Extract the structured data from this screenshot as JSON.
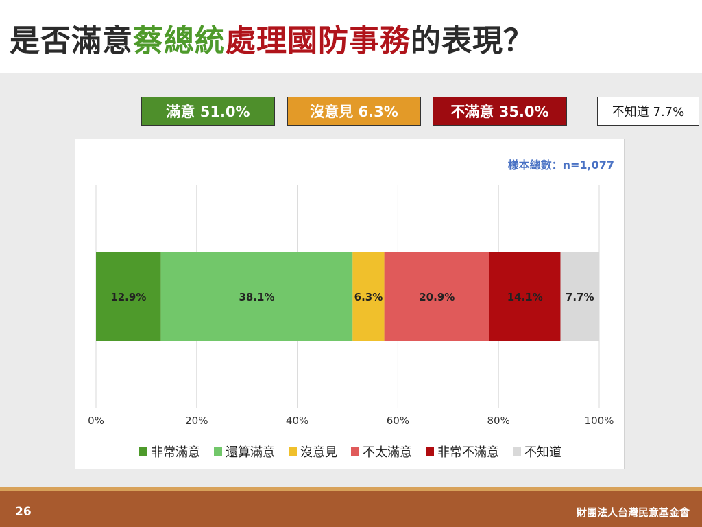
{
  "title": {
    "part1": "是否滿意",
    "part2": "蔡總統",
    "part3": "處理國防事務",
    "part4": "的表現？"
  },
  "summary": {
    "satisfied": "滿意 51.0%",
    "neutral": "沒意見 6.3%",
    "dissatisfied": "不滿意 35.0%",
    "dontknow": "不知道 7.7%"
  },
  "sample_label": "樣本總數：n=1,077",
  "footer": {
    "page": "26",
    "org": "財團法人台灣民意基金會"
  },
  "chart_data": {
    "type": "bar",
    "orientation": "horizontal-stacked",
    "categories": [
      ""
    ],
    "series": [
      {
        "name": "非常滿意",
        "values": [
          12.9
        ],
        "label": "12.9%",
        "color": "#4e9a2b"
      },
      {
        "name": "還算滿意",
        "values": [
          38.1
        ],
        "label": "38.1%",
        "color": "#72c76a"
      },
      {
        "name": "沒意見",
        "values": [
          6.3
        ],
        "label": "6.3%",
        "color": "#f0c02c"
      },
      {
        "name": "不太滿意",
        "values": [
          20.9
        ],
        "label": "20.9%",
        "color": "#e05a5a"
      },
      {
        "name": "非常不滿意",
        "values": [
          14.1
        ],
        "label": "14.1%",
        "color": "#b00b0f"
      },
      {
        "name": "不知道",
        "values": [
          7.7
        ],
        "label": "7.7%",
        "color": "#d9d9d9"
      }
    ],
    "xlim": [
      0,
      100
    ],
    "xticks": [
      "0%",
      "20%",
      "40%",
      "60%",
      "80%",
      "100%"
    ],
    "grid": true,
    "legend": "bottom"
  }
}
